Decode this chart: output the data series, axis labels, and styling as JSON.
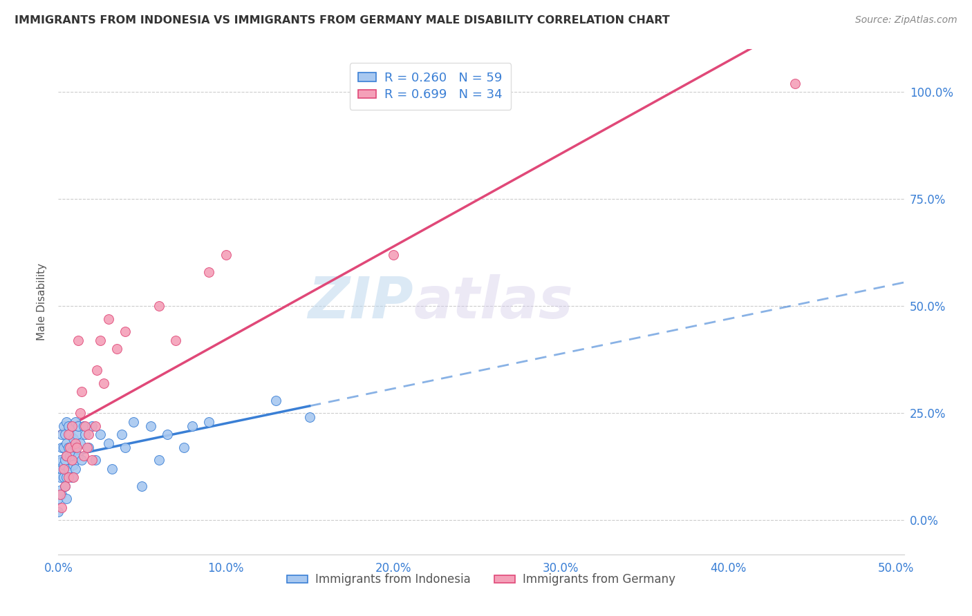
{
  "title": "IMMIGRANTS FROM INDONESIA VS IMMIGRANTS FROM GERMANY MALE DISABILITY CORRELATION CHART",
  "source": "Source: ZipAtlas.com",
  "ylabel": "Male Disability",
  "xlim": [
    0.0,
    0.505
  ],
  "ylim": [
    -0.08,
    1.1
  ],
  "color_indonesia": "#a8c8f0",
  "color_germany": "#f4a0b8",
  "trendline_indonesia_color": "#3a7fd5",
  "trendline_germany_color": "#e04878",
  "watermark_zip": "ZIP",
  "watermark_atlas": "atlas",
  "indonesia_x": [
    0.0,
    0.0,
    0.001,
    0.001,
    0.001,
    0.002,
    0.002,
    0.002,
    0.002,
    0.003,
    0.003,
    0.003,
    0.003,
    0.004,
    0.004,
    0.004,
    0.005,
    0.005,
    0.005,
    0.005,
    0.005,
    0.006,
    0.006,
    0.006,
    0.007,
    0.007,
    0.008,
    0.008,
    0.008,
    0.009,
    0.009,
    0.01,
    0.01,
    0.01,
    0.011,
    0.012,
    0.012,
    0.013,
    0.014,
    0.015,
    0.016,
    0.018,
    0.02,
    0.022,
    0.025,
    0.03,
    0.032,
    0.038,
    0.04,
    0.045,
    0.05,
    0.055,
    0.06,
    0.065,
    0.075,
    0.08,
    0.09,
    0.13,
    0.15
  ],
  "indonesia_y": [
    0.02,
    0.05,
    0.07,
    0.1,
    0.14,
    0.06,
    0.12,
    0.17,
    0.2,
    0.1,
    0.13,
    0.17,
    0.22,
    0.08,
    0.14,
    0.2,
    0.05,
    0.1,
    0.15,
    0.18,
    0.23,
    0.12,
    0.17,
    0.22,
    0.15,
    0.2,
    0.1,
    0.16,
    0.22,
    0.13,
    0.19,
    0.12,
    0.17,
    0.23,
    0.2,
    0.15,
    0.22,
    0.18,
    0.14,
    0.22,
    0.2,
    0.17,
    0.22,
    0.14,
    0.2,
    0.18,
    0.12,
    0.2,
    0.17,
    0.23,
    0.08,
    0.22,
    0.14,
    0.2,
    0.17,
    0.22,
    0.23,
    0.28,
    0.24
  ],
  "germany_x": [
    0.001,
    0.002,
    0.003,
    0.004,
    0.005,
    0.006,
    0.006,
    0.007,
    0.008,
    0.008,
    0.009,
    0.01,
    0.011,
    0.012,
    0.013,
    0.014,
    0.015,
    0.016,
    0.017,
    0.018,
    0.02,
    0.022,
    0.023,
    0.025,
    0.027,
    0.03,
    0.035,
    0.04,
    0.06,
    0.07,
    0.09,
    0.1,
    0.2,
    0.44
  ],
  "germany_y": [
    0.06,
    0.03,
    0.12,
    0.08,
    0.15,
    0.1,
    0.2,
    0.17,
    0.14,
    0.22,
    0.1,
    0.18,
    0.17,
    0.42,
    0.25,
    0.3,
    0.15,
    0.22,
    0.17,
    0.2,
    0.14,
    0.22,
    0.35,
    0.42,
    0.32,
    0.47,
    0.4,
    0.44,
    0.5,
    0.42,
    0.58,
    0.62,
    0.62,
    1.02
  ]
}
